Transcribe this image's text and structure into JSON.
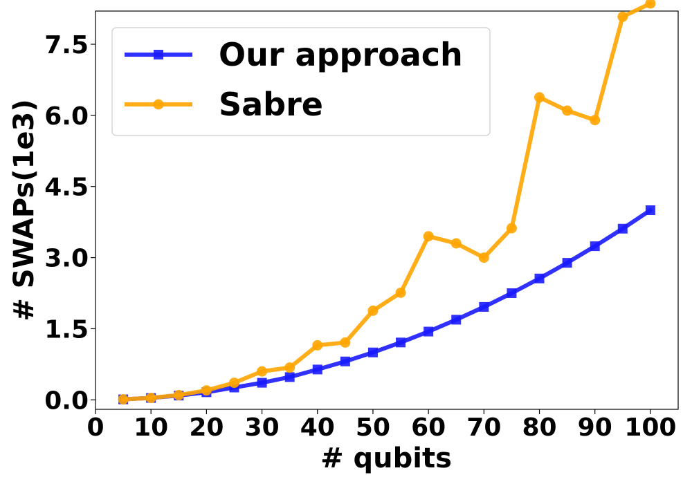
{
  "chart_data": {
    "type": "line",
    "title": "",
    "xlabel": "# qubits",
    "ylabel": "# SWAPs(1e3)",
    "xlim": [
      0,
      105
    ],
    "ylim": [
      -0.2,
      8.2
    ],
    "x_ticks": [
      0,
      10,
      20,
      30,
      40,
      50,
      60,
      70,
      80,
      90,
      100
    ],
    "y_ticks": [
      0.0,
      1.5,
      3.0,
      4.5,
      6.0,
      7.5
    ],
    "x_tick_labels": [
      "0",
      "10",
      "20",
      "30",
      "40",
      "50",
      "60",
      "70",
      "80",
      "90",
      "100"
    ],
    "y_tick_labels": [
      "0.0",
      "1.5",
      "3.0",
      "4.5",
      "6.0",
      "7.5"
    ],
    "grid": false,
    "legend_position": "top-left",
    "x": [
      5,
      10,
      15,
      20,
      25,
      30,
      35,
      40,
      45,
      50,
      55,
      60,
      65,
      70,
      75,
      80,
      85,
      90,
      95,
      100
    ],
    "series": [
      {
        "name": "Our approach",
        "color": "#1a1aff",
        "marker": "square",
        "values": [
          0.01,
          0.04,
          0.09,
          0.16,
          0.26,
          0.36,
          0.48,
          0.64,
          0.81,
          1.0,
          1.21,
          1.44,
          1.69,
          1.96,
          2.25,
          2.56,
          2.89,
          3.24,
          3.61,
          4.0
        ]
      },
      {
        "name": "Sabre",
        "color": "#ffa500",
        "marker": "circle",
        "values": [
          0.01,
          0.04,
          0.1,
          0.2,
          0.36,
          0.6,
          0.68,
          1.15,
          1.21,
          1.88,
          2.26,
          3.45,
          3.3,
          3.0,
          3.62,
          6.38,
          6.1,
          5.9,
          8.08,
          8.36
        ]
      }
    ]
  }
}
